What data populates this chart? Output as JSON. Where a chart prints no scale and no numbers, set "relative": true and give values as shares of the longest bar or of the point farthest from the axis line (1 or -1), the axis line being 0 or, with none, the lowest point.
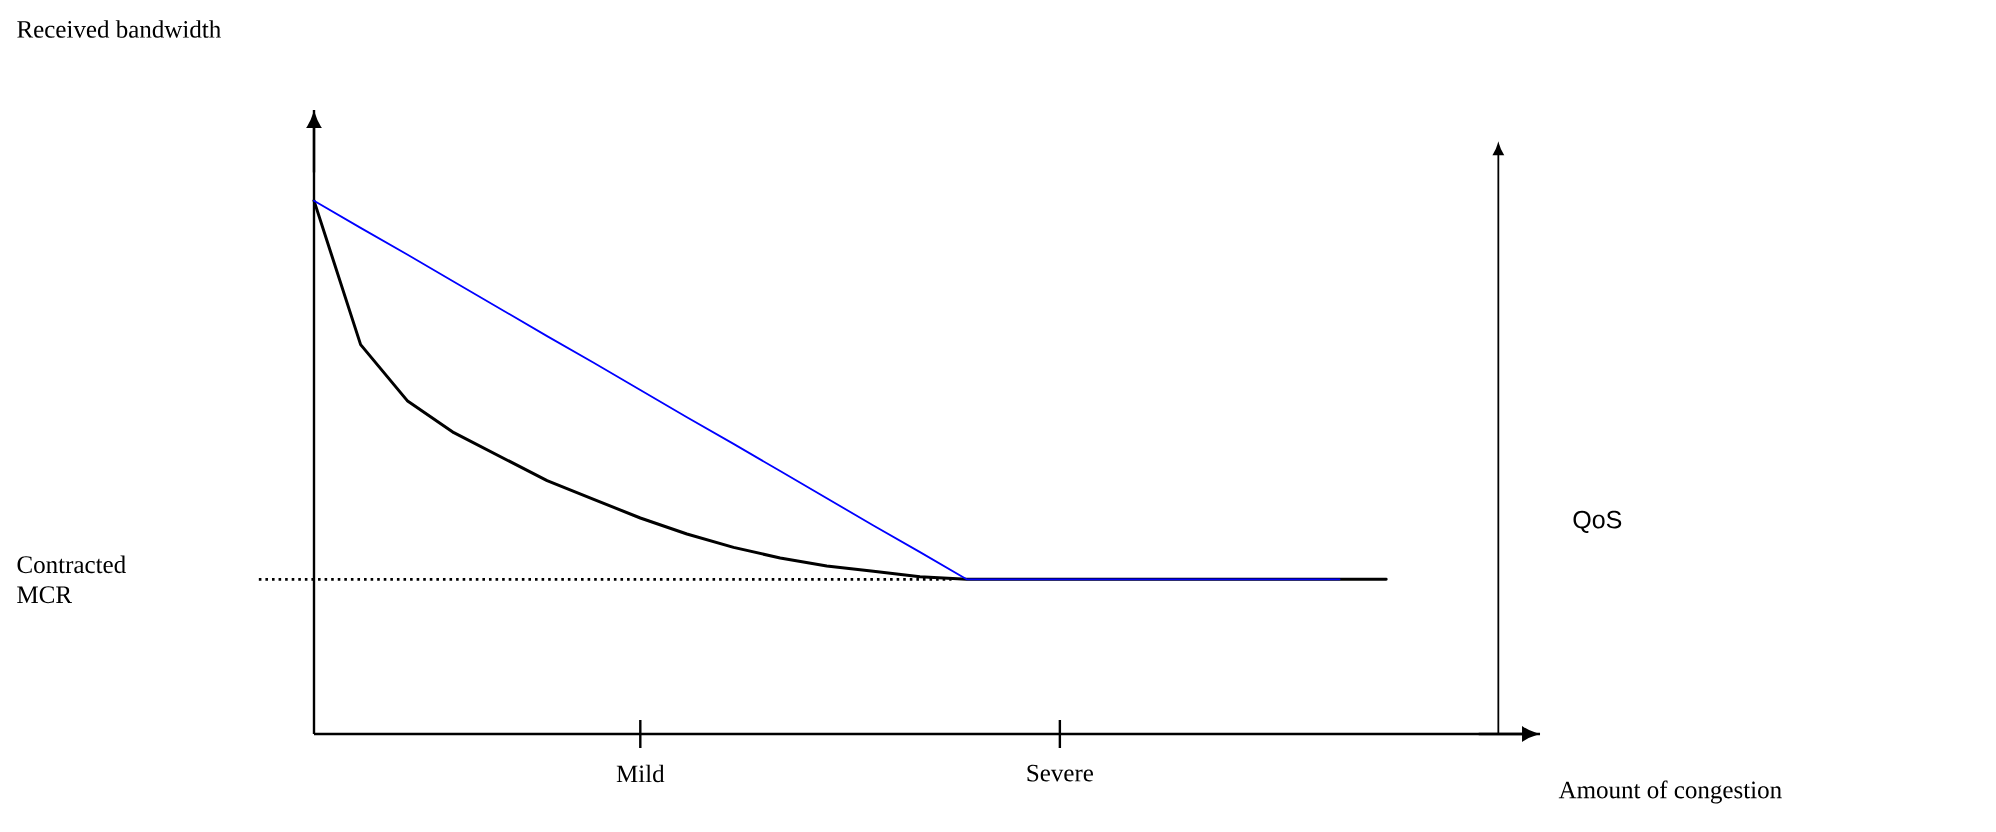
{
  "chart_data": {
    "type": "line",
    "xlabel": "Amount of congestion",
    "annotations": [
      "Received bandwidth"
    ],
    "y2label": "QoS",
    "relative": true,
    "marker": "none",
    "line_style": "solid",
    "categories": [
      null,
      null,
      null,
      null,
      null,
      null,
      null,
      "Mild",
      null,
      null,
      null,
      null,
      null,
      null,
      null,
      null,
      "Severe",
      null,
      null,
      null,
      null,
      null,
      null,
      null,
      null,
      null,
      null
    ],
    "series": [
      {
        "color": "#000000",
        "values": [
          1.0,
          0.73,
          0.625,
          0.565,
          0.52,
          0.475,
          0.44,
          0.405,
          0.375,
          0.35,
          0.33,
          0.315,
          0.305,
          0.295,
          0.29,
          0.29,
          0.29,
          0.29,
          0.29,
          0.29,
          0.29,
          0.29,
          0.29,
          0.29,
          null,
          null,
          null
        ]
      },
      {
        "color": "#0000ff",
        "values": [
          1.0,
          0.949,
          0.899,
          0.848,
          0.797,
          0.746,
          0.696,
          0.645,
          0.594,
          0.544,
          0.493,
          0.442,
          0.391,
          0.341,
          0.29,
          0.29,
          0.29,
          0.29,
          0.29,
          0.29,
          0.29,
          0.29,
          0.29,
          null,
          null,
          null,
          null
        ]
      }
    ],
    "ref_lines": [
      {
        "axis": "y",
        "value": 0.29,
        "label": "Contracted MCR",
        "line_style": "dotted"
      }
    ]
  }
}
